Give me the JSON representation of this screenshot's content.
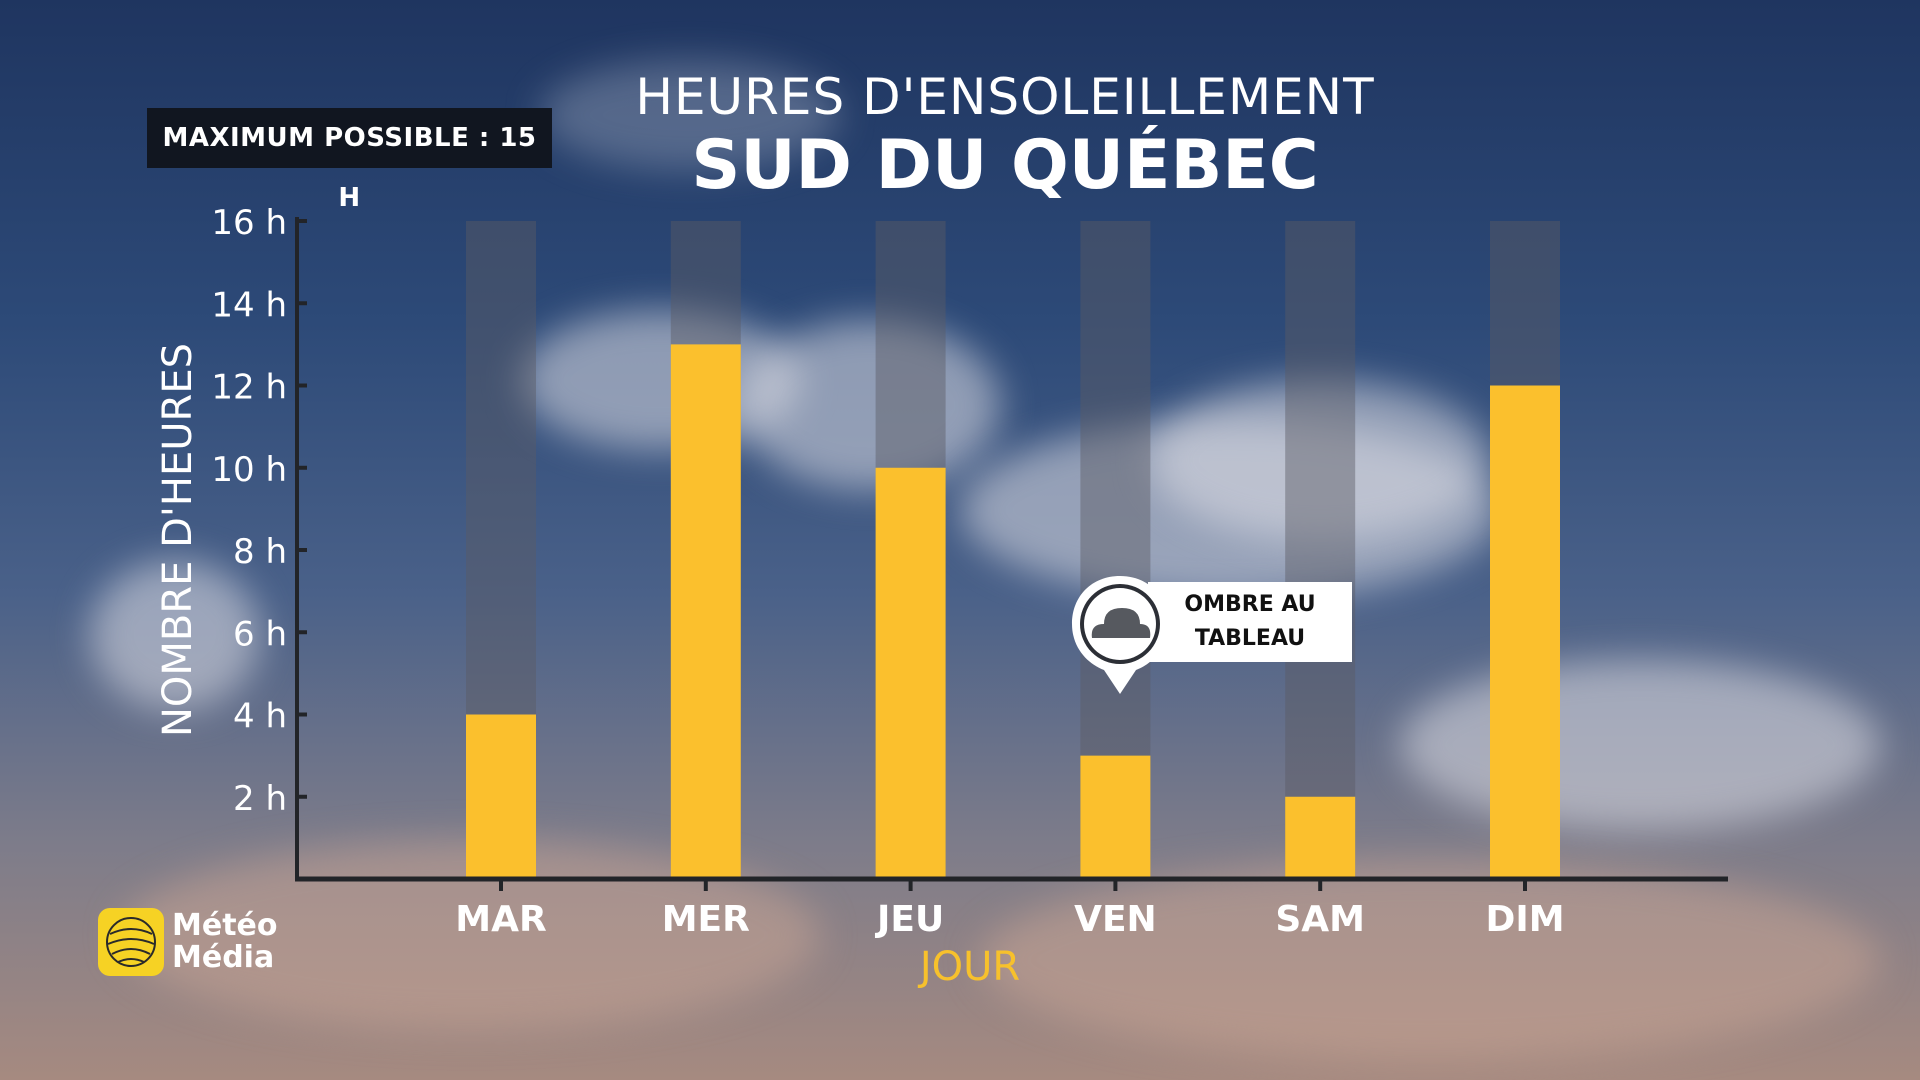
{
  "header": {
    "title_line1": "HEURES D'ENSOLEILLEMENT",
    "title_line2": "SUD DU QUÉBEC",
    "max_note": "MAXIMUM POSSIBLE : 15 H"
  },
  "callout": {
    "line1": "OMBRE AU",
    "line2": "TABLEAU",
    "icon": "cloud-icon"
  },
  "logo": {
    "line1": "Météo",
    "line2": "Média"
  },
  "colors": {
    "bar": "#fbc02d",
    "track": "rgba(90,90,100,0.45)",
    "axis": "#222428",
    "xlabel": "#f7c12c"
  },
  "chart_data": {
    "type": "bar",
    "categories": [
      "MAR",
      "MER",
      "JEU",
      "VEN",
      "SAM",
      "DIM"
    ],
    "values": [
      4,
      13,
      10,
      3,
      2,
      12
    ],
    "ylim": [
      0,
      16
    ],
    "yticks": [
      2,
      4,
      6,
      8,
      10,
      12,
      14,
      16
    ],
    "ytick_labels": [
      "2 h",
      "4 h",
      "6 h",
      "8 h",
      "10 h",
      "12 h",
      "14 h",
      "16 h"
    ],
    "xlabel": "JOUR",
    "ylabel": "NOMBRE D'HEURES",
    "grid": false
  }
}
